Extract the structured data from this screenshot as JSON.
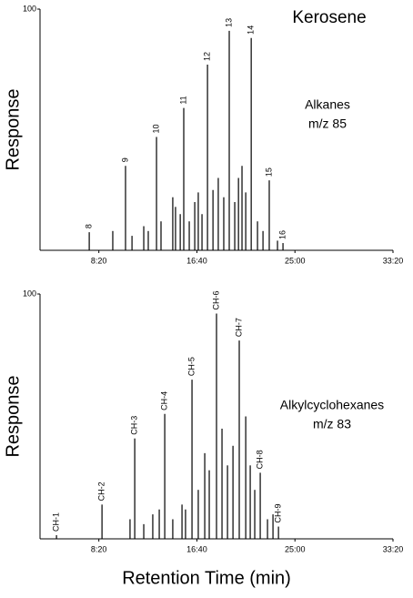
{
  "chart_data": [
    {
      "type": "peaks",
      "title": "Kerosene",
      "ylabel": "Response",
      "annotation": [
        "Alkanes",
        "m/z 85"
      ],
      "x": [
        451,
        571,
        636,
        669,
        729,
        752,
        794,
        817,
        877,
        891,
        915,
        933,
        961,
        989,
        1007,
        1026,
        1054,
        1082,
        1109,
        1137,
        1165,
        1193,
        1212,
        1230,
        1249,
        1277,
        1309,
        1337,
        1369,
        1411,
        1439
      ],
      "values": [
        7.5,
        8,
        35,
        6,
        10,
        8,
        47,
        12,
        22,
        18,
        15,
        59,
        12,
        20,
        24,
        15,
        77,
        25,
        30,
        22,
        91,
        20,
        30,
        35,
        24,
        88,
        12,
        8,
        29,
        4,
        3
      ],
      "labels": [
        "8",
        null,
        "9",
        null,
        null,
        null,
        "10",
        null,
        null,
        null,
        null,
        "11",
        null,
        null,
        null,
        null,
        "12",
        null,
        null,
        null,
        "13",
        null,
        null,
        null,
        null,
        "14",
        null,
        null,
        "15",
        null,
        "16"
      ],
      "color": "#000000",
      "xlim": [
        200,
        2000
      ],
      "xticks": [
        {
          "value": 500,
          "label": "8:20"
        },
        {
          "value": 1000,
          "label": "16:40"
        },
        {
          "value": 1500,
          "label": "25:00"
        },
        {
          "value": 2000,
          "label": "33:20"
        }
      ],
      "ylim": [
        0,
        100
      ],
      "yticks": [
        100
      ]
    },
    {
      "type": "peaks",
      "ylabel": "Response",
      "xlabel": "Retention Time (min)",
      "annotation": [
        "Alkylcyclohexanes",
        "m/z 83"
      ],
      "x": [
        284,
        516,
        659,
        683,
        729,
        775,
        808,
        836,
        877,
        924,
        942,
        975,
        1007,
        1040,
        1063,
        1100,
        1128,
        1156,
        1184,
        1216,
        1249,
        1272,
        1295,
        1323,
        1360,
        1388,
        1416
      ],
      "values": [
        1.5,
        14,
        8,
        41,
        6,
        10,
        12,
        51,
        8,
        14,
        12,
        65,
        20,
        35,
        28,
        92,
        45,
        30,
        38,
        81,
        50,
        30,
        20,
        27,
        8,
        10,
        5
      ],
      "labels": [
        "CH-1",
        "CH-2",
        null,
        "CH-3",
        null,
        null,
        null,
        "CH-4",
        null,
        null,
        null,
        "CH-5",
        null,
        null,
        null,
        "CH-6",
        null,
        null,
        null,
        "CH-7",
        null,
        null,
        null,
        "CH-8",
        null,
        null,
        "CH-9"
      ],
      "color": "#000000",
      "xlim": [
        200,
        2000
      ],
      "xticks": [
        {
          "value": 500,
          "label": "8:20"
        },
        {
          "value": 1000,
          "label": "16:40"
        },
        {
          "value": 1500,
          "label": "25:00"
        },
        {
          "value": 2000,
          "label": "33:20"
        }
      ],
      "ylim": [
        0,
        100
      ],
      "yticks": [
        100
      ]
    }
  ]
}
